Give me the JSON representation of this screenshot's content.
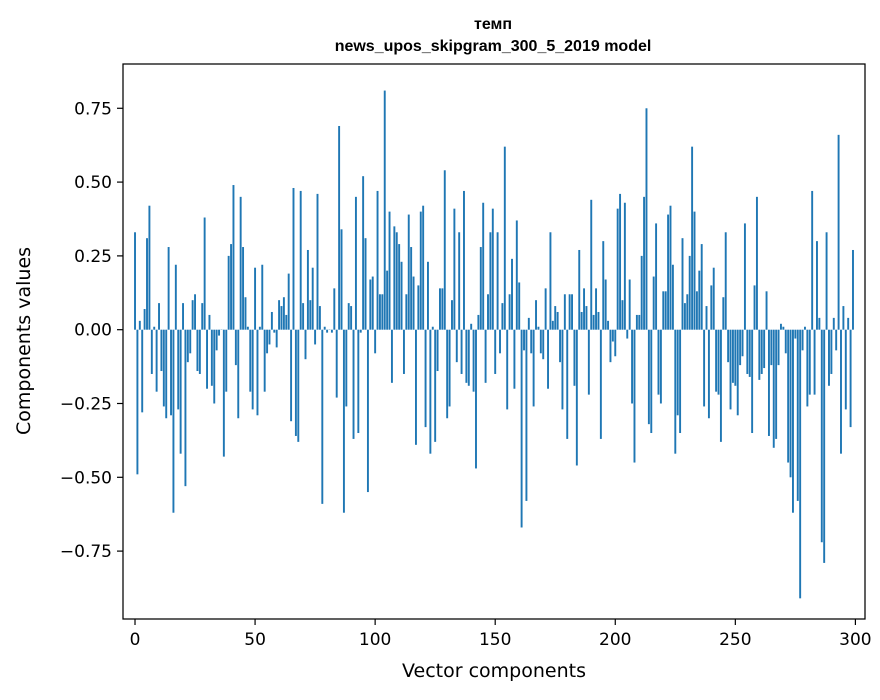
{
  "chart_data": {
    "type": "bar",
    "title": "темп",
    "subtitle": "news_upos_skipgram_300_5_2019 model",
    "xlabel": "Vector components",
    "ylabel": "Components values",
    "xlim": [
      -5,
      304
    ],
    "ylim": [
      -0.98,
      0.9
    ],
    "xticks": [
      0,
      50,
      100,
      150,
      200,
      250,
      300
    ],
    "xtick_labels": [
      "0",
      "50",
      "100",
      "150",
      "200",
      "250",
      "300"
    ],
    "yticks": [
      0.75,
      0.5,
      0.25,
      0.0,
      -0.25,
      -0.5,
      -0.75
    ],
    "ytick_labels": [
      "0.75",
      "0.50",
      "0.25",
      "0.00",
      "−0.25",
      "−0.50",
      "−0.75"
    ],
    "grid": false,
    "color": "#1f77b4",
    "x": [
      0,
      1,
      2,
      3,
      4,
      5,
      6,
      7,
      8,
      9,
      10,
      11,
      12,
      13,
      14,
      15,
      16,
      17,
      18,
      19,
      20,
      21,
      22,
      23,
      24,
      25,
      26,
      27,
      28,
      29,
      30,
      31,
      32,
      33,
      34,
      35,
      36,
      37,
      38,
      39,
      40,
      41,
      42,
      43,
      44,
      45,
      46,
      47,
      48,
      49,
      50,
      51,
      52,
      53,
      54,
      55,
      56,
      57,
      58,
      59,
      60,
      61,
      62,
      63,
      64,
      65,
      66,
      67,
      68,
      69,
      70,
      71,
      72,
      73,
      74,
      75,
      76,
      77,
      78,
      79,
      80,
      81,
      82,
      83,
      84,
      85,
      86,
      87,
      88,
      89,
      90,
      91,
      92,
      93,
      94,
      95,
      96,
      97,
      98,
      99,
      100,
      101,
      102,
      103,
      104,
      105,
      106,
      107,
      108,
      109,
      110,
      111,
      112,
      113,
      114,
      115,
      116,
      117,
      118,
      119,
      120,
      121,
      122,
      123,
      124,
      125,
      126,
      127,
      128,
      129,
      130,
      131,
      132,
      133,
      134,
      135,
      136,
      137,
      138,
      139,
      140,
      141,
      142,
      143,
      144,
      145,
      146,
      147,
      148,
      149,
      150,
      151,
      152,
      153,
      154,
      155,
      156,
      157,
      158,
      159,
      160,
      161,
      162,
      163,
      164,
      165,
      166,
      167,
      168,
      169,
      170,
      171,
      172,
      173,
      174,
      175,
      176,
      177,
      178,
      179,
      180,
      181,
      182,
      183,
      184,
      185,
      186,
      187,
      188,
      189,
      190,
      191,
      192,
      193,
      194,
      195,
      196,
      197,
      198,
      199,
      200,
      201,
      202,
      203,
      204,
      205,
      206,
      207,
      208,
      209,
      210,
      211,
      212,
      213,
      214,
      215,
      216,
      217,
      218,
      219,
      220,
      221,
      222,
      223,
      224,
      225,
      226,
      227,
      228,
      229,
      230,
      231,
      232,
      233,
      234,
      235,
      236,
      237,
      238,
      239,
      240,
      241,
      242,
      243,
      244,
      245,
      246,
      247,
      248,
      249,
      250,
      251,
      252,
      253,
      254,
      255,
      256,
      257,
      258,
      259,
      260,
      261,
      262,
      263,
      264,
      265,
      266,
      267,
      268,
      269,
      270,
      271,
      272,
      273,
      274,
      275,
      276,
      277,
      278,
      279,
      280,
      281,
      282,
      283,
      284,
      285,
      286,
      287,
      288,
      289,
      290,
      291,
      292,
      293,
      294,
      295,
      296,
      297,
      298,
      299
    ],
    "values": [
      0.33,
      -0.49,
      0.03,
      -0.28,
      0.07,
      0.31,
      0.42,
      -0.15,
      0.01,
      -0.21,
      0.09,
      -0.14,
      -0.26,
      -0.3,
      0.28,
      -0.29,
      -0.62,
      0.22,
      -0.27,
      -0.42,
      0.09,
      -0.53,
      -0.11,
      -0.08,
      0.1,
      0.12,
      -0.14,
      -0.15,
      0.09,
      0.38,
      -0.2,
      0.05,
      -0.19,
      -0.25,
      -0.07,
      -0.02,
      0.0,
      -0.43,
      -0.21,
      0.25,
      0.29,
      0.49,
      -0.12,
      -0.3,
      0.45,
      0.28,
      0.11,
      0.01,
      -0.21,
      -0.27,
      0.21,
      -0.29,
      0.01,
      0.22,
      -0.21,
      -0.08,
      -0.05,
      0.06,
      -0.01,
      -0.06,
      0.1,
      0.08,
      0.11,
      0.05,
      0.19,
      -0.31,
      0.48,
      -0.36,
      -0.38,
      0.47,
      0.09,
      -0.1,
      0.27,
      0.1,
      0.21,
      -0.05,
      0.46,
      0.08,
      -0.59,
      0.01,
      -0.01,
      0.0,
      -0.01,
      0.14,
      -0.23,
      0.69,
      0.34,
      -0.62,
      -0.26,
      0.09,
      0.08,
      -0.37,
      0.45,
      -0.35,
      -0.01,
      0.52,
      0.31,
      -0.55,
      0.17,
      0.18,
      -0.08,
      0.47,
      0.12,
      0.12,
      0.81,
      0.2,
      0.4,
      -0.18,
      0.35,
      0.33,
      0.29,
      0.23,
      -0.15,
      0.12,
      0.39,
      0.28,
      0.18,
      -0.39,
      0.15,
      0.4,
      0.42,
      -0.33,
      0.23,
      -0.42,
      0.01,
      -0.38,
      -0.14,
      0.14,
      0.14,
      0.54,
      -0.3,
      -0.26,
      0.1,
      0.41,
      -0.11,
      0.33,
      -0.15,
      0.47,
      -0.18,
      -0.19,
      0.02,
      -0.21,
      -0.47,
      0.05,
      0.28,
      0.43,
      -0.18,
      0.12,
      0.33,
      0.41,
      -0.15,
      0.33,
      -0.08,
      0.09,
      0.62,
      -0.27,
      0.12,
      0.24,
      -0.2,
      0.37,
      0.16,
      -0.67,
      -0.07,
      -0.58,
      0.04,
      -0.08,
      -0.26,
      0.1,
      0.01,
      -0.08,
      -0.1,
      0.14,
      -0.2,
      0.33,
      0.03,
      0.08,
      0.06,
      -0.11,
      -0.27,
      0.12,
      -0.37,
      0.12,
      0.12,
      -0.19,
      -0.46,
      0.27,
      0.06,
      0.14,
      0.08,
      -0.22,
      0.44,
      0.05,
      0.14,
      0.06,
      -0.37,
      0.3,
      0.17,
      0.03,
      -0.11,
      -0.04,
      -0.09,
      0.41,
      0.46,
      0.1,
      0.43,
      -0.03,
      0.17,
      -0.25,
      -0.45,
      0.05,
      0.05,
      0.25,
      0.45,
      0.75,
      -0.32,
      -0.35,
      0.18,
      0.36,
      -0.22,
      -0.25,
      0.13,
      0.13,
      0.39,
      0.42,
      0.22,
      -0.42,
      -0.29,
      -0.35,
      0.31,
      0.09,
      0.12,
      0.25,
      0.62,
      0.4,
      0.13,
      0.2,
      0.29,
      -0.26,
      0.08,
      -0.3,
      0.15,
      0.21,
      -0.21,
      -0.22,
      -0.38,
      0.11,
      0.33,
      -0.11,
      -0.27,
      -0.18,
      -0.19,
      -0.29,
      -0.12,
      -0.09,
      0.36,
      -0.15,
      -0.16,
      -0.35,
      0.15,
      0.45,
      -0.17,
      -0.15,
      -0.13,
      0.13,
      -0.36,
      -0.12,
      -0.4,
      -0.37,
      -0.12,
      0.02,
      0.01,
      -0.08,
      -0.45,
      -0.5,
      -0.62,
      -0.03,
      -0.58,
      -0.91,
      -0.07,
      0.01,
      -0.26,
      -0.22,
      0.47,
      -0.22,
      0.3,
      0.04,
      -0.72,
      -0.79,
      0.33,
      -0.19,
      -0.15,
      0.04,
      -0.07,
      0.66,
      -0.42,
      0.08,
      -0.27,
      0.04,
      -0.33,
      0.27
    ]
  }
}
